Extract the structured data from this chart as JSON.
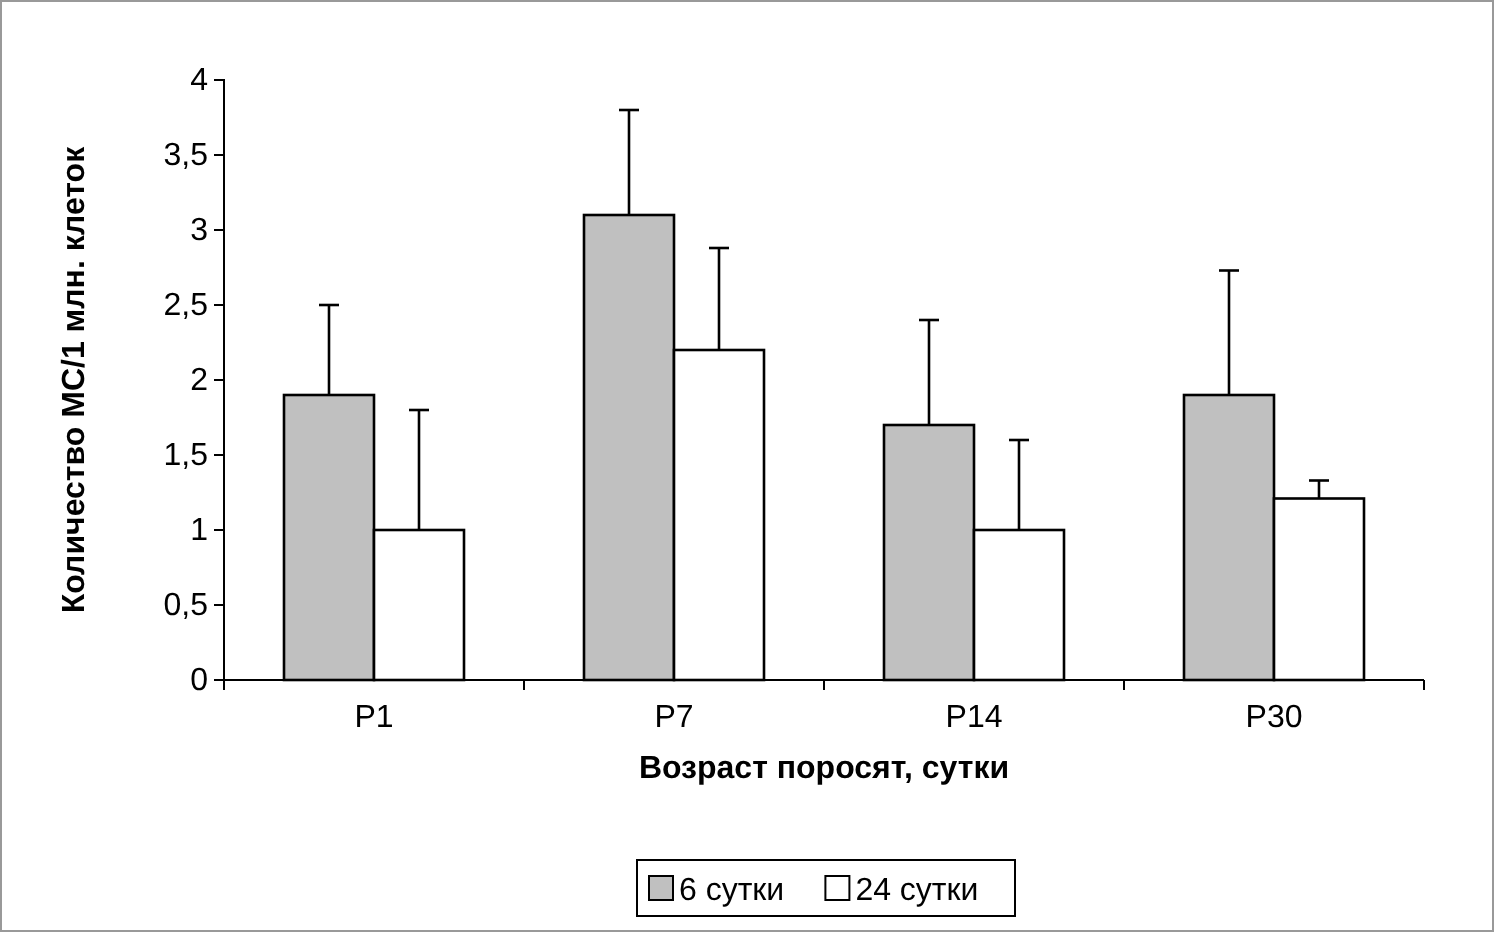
{
  "chart_data": {
    "type": "bar",
    "xlabel": "Возраст поросят, сутки",
    "ylabel": "Количество МС/1 млн. клеток",
    "categories": [
      "P1",
      "P7",
      "P14",
      "P30"
    ],
    "series": [
      {
        "name": "6 сутки",
        "color": "#c0c0c0",
        "values": [
          1.9,
          3.1,
          1.7,
          1.9
        ],
        "errors": [
          [
            1.9,
            2.5
          ],
          [
            3.1,
            3.8
          ],
          [
            1.7,
            2.4
          ],
          [
            1.9,
            2.73
          ]
        ]
      },
      {
        "name": "24 сутки",
        "color": "#ffffff",
        "values": [
          1.0,
          2.2,
          1.0,
          1.21
        ],
        "errors": [
          [
            1.0,
            1.8
          ],
          [
            2.2,
            2.88
          ],
          [
            1.0,
            1.6
          ],
          [
            1.21,
            1.33
          ]
        ]
      }
    ],
    "ylim": [
      0,
      4
    ],
    "yticks": [
      0,
      {
        "value": 0.5,
        "label": "0,5"
      },
      1,
      {
        "value": 1.5,
        "label": "1,5"
      },
      2,
      {
        "value": 2.5,
        "label": "2,5"
      },
      3,
      {
        "value": 3.5,
        "label": "3,5"
      },
      4
    ],
    "grid": false,
    "legend": "bottom"
  }
}
